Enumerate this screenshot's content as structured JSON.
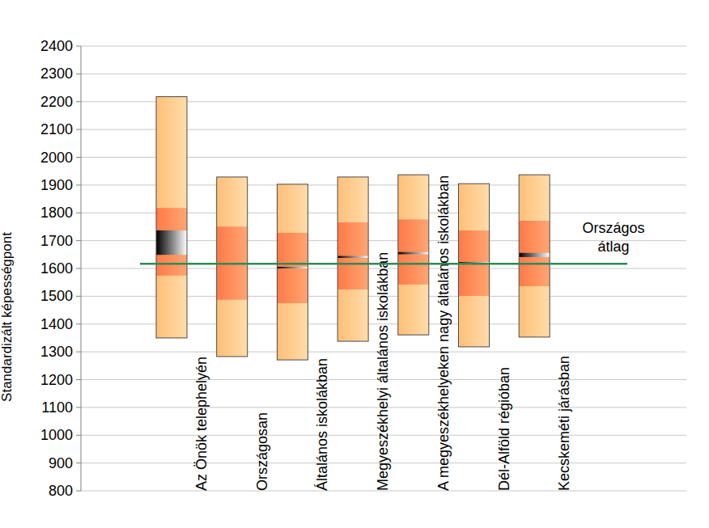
{
  "chart_data": {
    "type": "box",
    "y_label": "Standardizált képességpont",
    "categories": [
      "Az Önök telephelyén",
      "Országosan",
      "Általános iskolákban",
      "Megyeszékhelyi általános iskolákban",
      "A megyeszékhelyeken nagy általános iskolákban",
      "Dél-Alföld régióban",
      "Kecskeméti járásban"
    ],
    "boxes": [
      {
        "p5": 1350,
        "p25": 1574,
        "p75": 1818,
        "p95": 2218,
        "ci_low": 1649,
        "ci_high": 1737
      },
      {
        "p5": 1283,
        "p25": 1487,
        "p75": 1751,
        "p95": 1929,
        "ci_low": 1615,
        "ci_high": 1619
      },
      {
        "p5": 1271,
        "p25": 1475,
        "p75": 1728,
        "p95": 1903,
        "ci_low": 1600,
        "ci_high": 1606
      },
      {
        "p5": 1338,
        "p25": 1524,
        "p75": 1766,
        "p95": 1929,
        "ci_low": 1638,
        "ci_high": 1645
      },
      {
        "p5": 1361,
        "p25": 1542,
        "p75": 1777,
        "p95": 1937,
        "ci_low": 1651,
        "ci_high": 1659
      },
      {
        "p5": 1318,
        "p25": 1501,
        "p75": 1737,
        "p95": 1905,
        "ci_low": 1617,
        "ci_high": 1623
      },
      {
        "p5": 1353,
        "p25": 1536,
        "p75": 1772,
        "p95": 1937,
        "ci_low": 1641,
        "ci_high": 1656
      }
    ],
    "reference_line": {
      "value": 1617,
      "label": "Országos átlag",
      "color": "#2e8b57"
    },
    "ylim": [
      800,
      2400
    ],
    "yticks": [
      800,
      900,
      1000,
      1100,
      1200,
      1300,
      1400,
      1500,
      1600,
      1700,
      1800,
      1900,
      2000,
      2100,
      2200,
      2300,
      2400
    ],
    "grid": true
  }
}
